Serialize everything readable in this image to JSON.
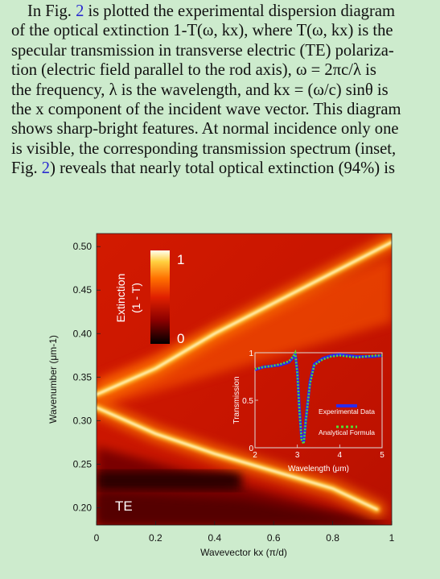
{
  "paragraph": {
    "lines": [
      {
        "pre": "In Fig. ",
        "ref": "2",
        "post": " is plotted the experimental dispersion diagram"
      },
      {
        "text": "of the optical extinction 1-T(ω, kx), where T(ω, kx) is the"
      },
      {
        "text": "specular transmission in transverse electric (TE) polariza-"
      },
      {
        "text": "tion (electric field parallel to the rod axis), ω = 2πc/λ is"
      },
      {
        "text": "the frequency, λ is the wavelength, and kx = (ω/c) sinθ is"
      },
      {
        "text": "the x component of the incident wave vector. This diagram"
      },
      {
        "text": "shows sharp-bright features. At normal incidence only one"
      },
      {
        "text": "is visible, the corresponding transmission spectrum (inset,"
      },
      {
        "pre": "Fig. ",
        "ref": "2",
        "post": ") reveals that nearly total optical extinction (94%) is"
      }
    ]
  },
  "figure": {
    "polarization_label": "TE",
    "colorbar": {
      "label": "Extinction\n(1 - T)",
      "label_line1": "Extinction",
      "label_line2": "(1 - T)",
      "max_label": "1",
      "min_label": "0"
    },
    "colors": {
      "dark": "#1a0000",
      "red": "#d01000",
      "orange": "#ff7a00",
      "yellow": "#ffe060",
      "white": "#fffde0"
    }
  },
  "chart_data": [
    {
      "type": "heatmap",
      "xlabel": "Wavevector kx (π/d)",
      "ylabel": "Wavenumber (μm-1)",
      "xlim": [
        0,
        1
      ],
      "ylim": [
        0.18,
        0.515
      ],
      "x_ticks": [
        "0",
        "0.2",
        "0.4",
        "0.6",
        "0.8",
        "1"
      ],
      "y_ticks": [
        "0.20",
        "0.25",
        "0.30",
        "0.35",
        "0.40",
        "0.45",
        "0.50"
      ],
      "x_tick_values": [
        0,
        0.2,
        0.4,
        0.6,
        0.8,
        1
      ],
      "y_tick_values": [
        0.2,
        0.25,
        0.3,
        0.35,
        0.4,
        0.45,
        0.5
      ],
      "bands": [
        {
          "x": [
            0,
            0.1,
            0.2,
            0.4,
            0.6,
            0.8,
            1.0
          ],
          "y": [
            0.33,
            0.345,
            0.36,
            0.4,
            0.435,
            0.47,
            0.505
          ]
        },
        {
          "x": [
            0,
            0.1,
            0.2,
            0.4,
            0.6,
            0.8,
            0.95
          ],
          "y": [
            0.315,
            0.3,
            0.285,
            0.262,
            0.242,
            0.222,
            0.198
          ]
        }
      ]
    },
    {
      "type": "line",
      "title": "",
      "xlabel": "Wavelength (μm)",
      "ylabel": "Transmission",
      "xlim": [
        2,
        5
      ],
      "ylim": [
        0,
        1
      ],
      "x_ticks": [
        "2",
        "3",
        "4",
        "5"
      ],
      "y_ticks": [
        "0",
        "0.5",
        "1"
      ],
      "x_tick_values": [
        2,
        3,
        4,
        5
      ],
      "y_tick_values": [
        0,
        0.5,
        1
      ],
      "series": [
        {
          "name": "Experimental Data",
          "color": "#2a2aee",
          "x": [
            2.0,
            2.2,
            2.4,
            2.6,
            2.8,
            2.9,
            2.95,
            3.0,
            3.05,
            3.1,
            3.15,
            3.2,
            3.3,
            3.4,
            3.6,
            3.8,
            4.0,
            4.2,
            4.4,
            4.6,
            4.8,
            5.0
          ],
          "y": [
            0.82,
            0.85,
            0.86,
            0.87,
            0.9,
            0.95,
            0.99,
            0.8,
            0.4,
            0.1,
            0.06,
            0.3,
            0.7,
            0.88,
            0.94,
            0.97,
            0.98,
            0.97,
            0.96,
            0.96,
            0.96,
            0.97
          ]
        },
        {
          "name": "Analytical Formula",
          "color": "#55dd33",
          "x": [
            2.0,
            2.2,
            2.4,
            2.6,
            2.8,
            2.9,
            2.95,
            3.0,
            3.05,
            3.1,
            3.15,
            3.2,
            3.3,
            3.4,
            3.6,
            3.8,
            4.0,
            4.2,
            4.4,
            4.6,
            4.8,
            5.0
          ],
          "y": [
            0.83,
            0.85,
            0.86,
            0.88,
            0.91,
            0.96,
            1.0,
            0.78,
            0.38,
            0.08,
            0.04,
            0.28,
            0.68,
            0.87,
            0.93,
            0.96,
            0.97,
            0.96,
            0.95,
            0.96,
            0.97,
            0.97
          ]
        }
      ]
    }
  ]
}
